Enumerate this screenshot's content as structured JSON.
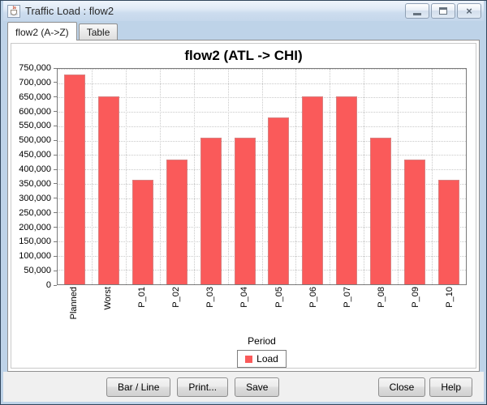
{
  "window": {
    "title": "Traffic Load : flow2",
    "icon": "java-coffee-icon"
  },
  "tabs": [
    {
      "label": "flow2 (A->Z)",
      "active": true
    },
    {
      "label": "Table",
      "active": false
    }
  ],
  "chart_data": {
    "type": "bar",
    "title": "flow2 (ATL -> CHI)",
    "categories": [
      "Planned",
      "Worst",
      "P_01",
      "P_02",
      "P_03",
      "P_04",
      "P_05",
      "P_06",
      "P_07",
      "P_08",
      "P_09",
      "P_10"
    ],
    "values": [
      730000,
      655000,
      365000,
      435000,
      510000,
      510000,
      580000,
      655000,
      655000,
      510000,
      435000,
      365000
    ],
    "xlabel": "Period",
    "ylabel": "",
    "ylim": [
      0,
      750000
    ],
    "ytick_step": 50000,
    "legend_label": "Load",
    "legend_position": "bottom",
    "grid": "dotted",
    "series_color": "#fa5a5a"
  },
  "buttons": {
    "bar_line": "Bar / Line",
    "print": "Print...",
    "save": "Save",
    "close": "Close",
    "help": "Help"
  },
  "colors": {
    "bar": "#fa5a5a",
    "frame": "#bed3e8",
    "content_bg": "#f0f0f0",
    "grid": "#c9c9c9"
  }
}
